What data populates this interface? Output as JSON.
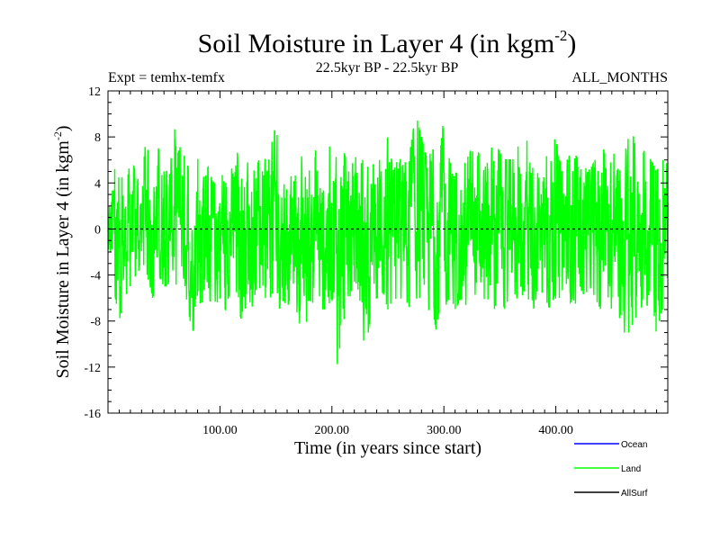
{
  "chart_data": {
    "type": "line",
    "title": "Soil Moisture in Layer 4 (in kgm",
    "title_sup": "-2",
    "title_end": ")",
    "subtitle_left": "Expt = temhx-temfx",
    "subtitle_center": "22.5kyr BP - 22.5kyr BP",
    "subtitle_right": "ALL_MONTHS",
    "xlabel": "Time (in years since start)",
    "ylabel": "Soil Moisture in Layer 4 (in kgm",
    "ylabel_sup": "-2",
    "ylabel_end": ")",
    "xlim": [
      0,
      500
    ],
    "ylim": [
      -16,
      12
    ],
    "x_ticks": [
      100,
      200,
      300,
      400
    ],
    "x_tick_labels": [
      "100.00",
      "200.00",
      "300.00",
      "400.00"
    ],
    "y_ticks": [
      -16,
      -12,
      -8,
      -4,
      0,
      4,
      8,
      12
    ],
    "y_tick_labels": [
      "-16",
      "-12",
      "-8",
      "-4",
      "0",
      "4",
      "8",
      "12"
    ],
    "zero_line": 0,
    "series": [
      {
        "name": "Ocean",
        "color": "#0000ff",
        "values": []
      },
      {
        "name": "Land",
        "color": "#00ff00",
        "x": [
          0,
          5,
          10,
          15,
          20,
          25,
          30,
          35,
          40,
          45,
          50,
          55,
          60,
          65,
          70,
          75,
          80,
          85,
          90,
          95,
          100,
          105,
          110,
          115,
          120,
          125,
          130,
          135,
          140,
          145,
          150,
          155,
          160,
          165,
          170,
          175,
          180,
          185,
          190,
          195,
          200,
          205,
          210,
          215,
          220,
          225,
          230,
          235,
          240,
          245,
          250,
          255,
          260,
          265,
          270,
          275,
          280,
          285,
          290,
          295,
          300,
          305,
          310,
          315,
          320,
          325,
          330,
          335,
          340,
          345,
          350,
          355,
          360,
          365,
          370,
          375,
          380,
          385,
          390,
          395,
          400,
          405,
          410,
          415,
          420,
          425,
          430,
          435,
          440,
          445,
          450,
          455,
          460,
          465,
          470,
          475,
          480,
          485,
          490,
          495,
          500
        ],
        "max": [
          2,
          5,
          6,
          3,
          6,
          5,
          4,
          9,
          6,
          7,
          5,
          5,
          9,
          7,
          6,
          4,
          6,
          8,
          5,
          4,
          6,
          6,
          5,
          7,
          4,
          7,
          5,
          6,
          6,
          7,
          9,
          5,
          6,
          4,
          6,
          7,
          5,
          7,
          5,
          6,
          8,
          6,
          7,
          5,
          6,
          7,
          5,
          6,
          5,
          7,
          8,
          5,
          7,
          6,
          7,
          10,
          8,
          6,
          7,
          5,
          10,
          6,
          8,
          5,
          6,
          7,
          7,
          5,
          6,
          8,
          7,
          6,
          6,
          9,
          6,
          8,
          7,
          5,
          6,
          7,
          8,
          5,
          6,
          7,
          6,
          7,
          5,
          6,
          8,
          6,
          7,
          6,
          6,
          8,
          8,
          6,
          7,
          6,
          5,
          6,
          6
        ],
        "min": [
          -4,
          -5,
          -8,
          -6,
          -5,
          -4,
          -4,
          -4,
          -6,
          -4,
          -5,
          -5,
          -5,
          -4,
          -6,
          -9,
          -8,
          -6,
          -6,
          -7,
          -6,
          -7,
          -5,
          -7,
          -8,
          -6,
          -7,
          -6,
          -6,
          -6,
          -9,
          -6,
          -7,
          -5,
          -8,
          -9,
          -7,
          -6,
          -7,
          -7,
          -6,
          -12,
          -8,
          -7,
          -7,
          -8,
          -11,
          -7,
          -6,
          -6,
          -7,
          -6,
          -7,
          -6,
          -7,
          -6,
          -6,
          -7,
          -7,
          -10,
          -7,
          -6,
          -7,
          -6,
          -7,
          -6,
          -7,
          -7,
          -6,
          -7,
          -6,
          -7,
          -5,
          -6,
          -7,
          -6,
          -7,
          -5,
          -6,
          -7,
          -6,
          -6,
          -7,
          -6,
          -7,
          -6,
          -5,
          -6,
          -7,
          -6,
          -7,
          -7,
          -9,
          -9,
          -8,
          -7,
          -6,
          -8,
          -9,
          -7,
          -8
        ]
      },
      {
        "name": "AllSurf",
        "color": "#000000",
        "values": []
      }
    ],
    "legend_position": "bottom-right"
  }
}
